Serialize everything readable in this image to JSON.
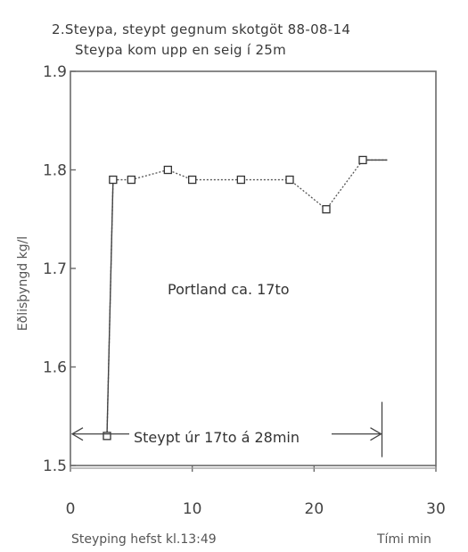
{
  "chart_data": {
    "type": "line",
    "title": "2.Steypa, steypt gegnum skotgöt 88-08-14",
    "subtitle": "Steypa kom upp en seig í 25m",
    "ylabel": "Eðlisþyngd kg/l",
    "xlabel": "Tími min",
    "xlim": [
      0,
      30
    ],
    "ylim": [
      1.5,
      1.9
    ],
    "x_ticks": [
      "0",
      "10",
      "20",
      "30"
    ],
    "y_ticks": [
      "1.5",
      "1.6",
      "1.7",
      "1.8",
      "1.9"
    ],
    "grid": false,
    "x": [
      3,
      3.5,
      5,
      8,
      10,
      14,
      18,
      21,
      24,
      26
    ],
    "y": [
      1.53,
      1.79,
      1.79,
      1.8,
      1.79,
      1.79,
      1.79,
      1.76,
      1.81,
      1.81
    ],
    "markers": [
      true,
      true,
      true,
      true,
      true,
      true,
      true,
      true,
      true,
      false
    ],
    "annotations": {
      "cement": "Portland ca. 17to",
      "duration": "Steypt úr 17to á 28min",
      "start": "Steyping hefst kl.13:49"
    }
  }
}
